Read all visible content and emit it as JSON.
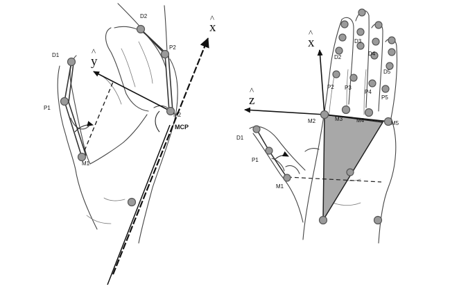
{
  "left_panel": {
    "labels": {
      "d1": "D1",
      "p1": "P1",
      "m1": "M1",
      "d2": "D2",
      "p2": "P2",
      "m2": "M2",
      "mcp": "MCP"
    },
    "axes": {
      "x": "x",
      "y": "y"
    }
  },
  "right_panel": {
    "labels": {
      "d1": "D1",
      "p1": "P1",
      "m1": "M1",
      "d2": "D2",
      "d3": "D3",
      "d4": "D4",
      "d5": "D5",
      "p2": "P2",
      "p3": "P3",
      "p4": "P4",
      "p5": "P5",
      "m2": "M2",
      "m3": "M3",
      "m4": "M4",
      "m5": "M5"
    },
    "axes": {
      "x": "x",
      "z": "z"
    },
    "palm_triangle_color": "#a8a8a8"
  },
  "colors": {
    "marker_fill": "#9a9a9a",
    "line": "#222222"
  }
}
